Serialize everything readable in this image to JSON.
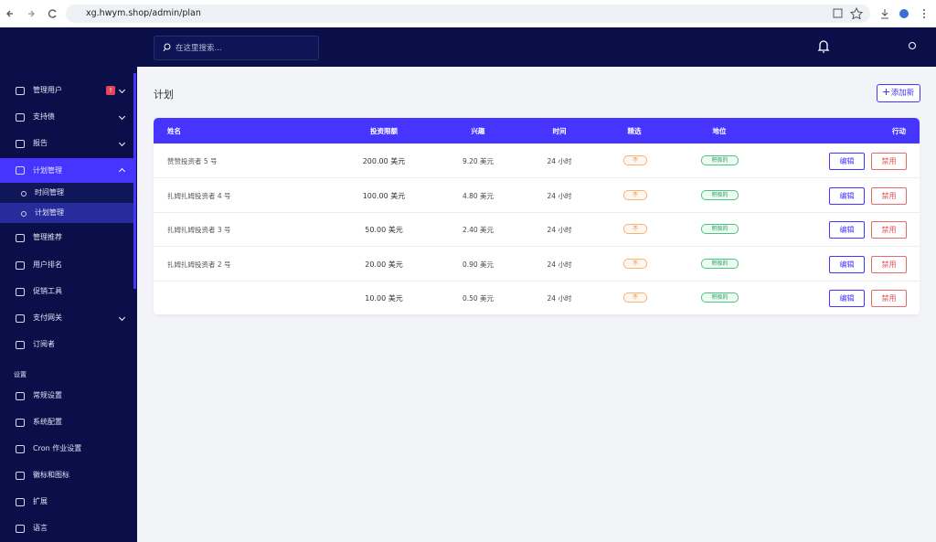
{
  "browser": {
    "url": "xg.hwym.shop/admin/plan"
  },
  "header": {
    "search_placeholder": "在这里搜索..."
  },
  "sidebar": {
    "items": [
      {
        "label": "管理用户",
        "badge": "!"
      },
      {
        "label": "支持债"
      },
      {
        "label": "报告"
      },
      {
        "label": "计划管理",
        "children": [
          "时间管理",
          "计划管理"
        ]
      },
      {
        "label": "管理推荐"
      },
      {
        "label": "用户排名"
      },
      {
        "label": "促销工具"
      },
      {
        "label": "支付网关"
      },
      {
        "label": "订阅者"
      }
    ],
    "section": "设置",
    "settings": [
      "常规设置",
      "系统配置",
      "Cron 作业设置",
      "徽标和图标",
      "扩展",
      "语言"
    ]
  },
  "page": {
    "title": "计划",
    "add_button": "添加新"
  },
  "table": {
    "headers": [
      "姓名",
      "投资限额",
      "兴趣",
      "时间",
      "精选",
      "地位",
      "行动"
    ],
    "rows": [
      [
        "赞赞投资者 5 号",
        "200.00 美元",
        "9.20 美元",
        "24 小时",
        "不",
        "积极的",
        "编辑",
        "禁用"
      ],
      [
        "扎姆扎姆投资者 4 号",
        "100.00 美元",
        "4.80 美元",
        "24 小时",
        "不",
        "积极的",
        "编辑",
        "禁用"
      ],
      [
        "扎姆扎姆投资者 3 号",
        "50.00 美元",
        "2.40 美元",
        "24 小时",
        "不",
        "积极的",
        "编辑",
        "禁用"
      ],
      [
        "扎姆扎姆投资者 2 号",
        "20.00 美元",
        "0.90 美元",
        "24 小时",
        "不",
        "积极的",
        "编辑",
        "禁用"
      ],
      [
        null,
        "10.00 美元",
        "0.50 美元",
        "24 小时",
        "不",
        "积极的",
        "编辑",
        "禁用"
      ]
    ]
  }
}
